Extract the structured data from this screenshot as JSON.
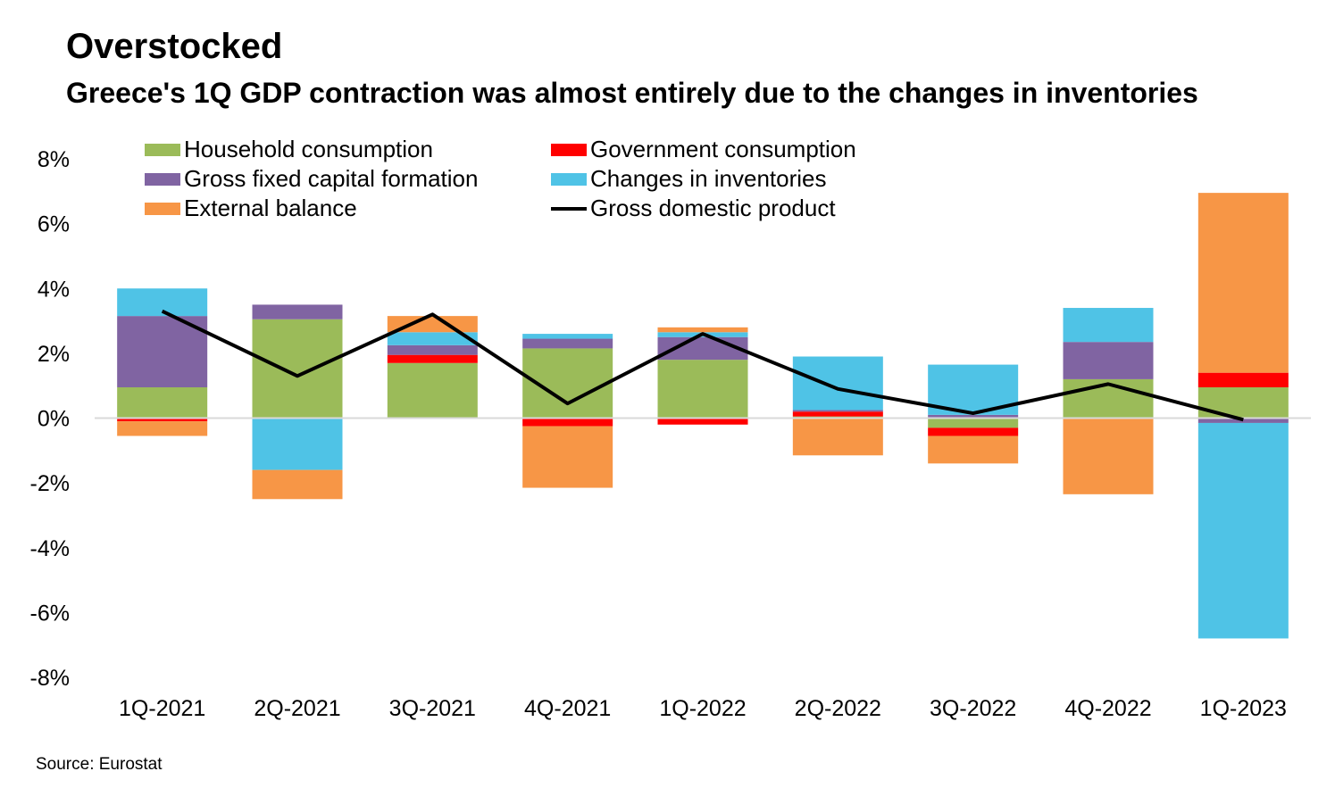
{
  "title": "Overstocked",
  "subtitle": "Greece's 1Q GDP contraction was almost entirely due to the changes in inventories",
  "source": "Source: Eurostat",
  "colors": {
    "household": "#9BBB59",
    "government": "#FF0000",
    "gfcf": "#8064A2",
    "inventories": "#4FC3E6",
    "external": "#F79646",
    "gdp": "#000000"
  },
  "chart_data": {
    "type": "bar",
    "stacked": true,
    "categories": [
      "1Q-2021",
      "2Q-2021",
      "3Q-2021",
      "4Q-2021",
      "1Q-2022",
      "2Q-2022",
      "3Q-2022",
      "4Q-2022",
      "1Q-2023"
    ],
    "ylim": [
      -8,
      8
    ],
    "y_ticks": [
      8,
      6,
      4,
      2,
      0,
      -2,
      -4,
      -6,
      -8
    ],
    "y_tick_labels": [
      "8%",
      "6%",
      "4%",
      "2%",
      "0%",
      "-2%",
      "-4%",
      "-6%",
      "-8%"
    ],
    "legend_position": "top",
    "series": [
      {
        "key": "household",
        "name": "Household consumption",
        "values": [
          0.95,
          3.05,
          1.7,
          2.15,
          1.8,
          0.05,
          -0.3,
          1.2,
          0.95
        ]
      },
      {
        "key": "government",
        "name": "Government consumption",
        "values": [
          -0.1,
          0.0,
          0.25,
          -0.25,
          -0.2,
          0.15,
          -0.25,
          0.0,
          0.45
        ]
      },
      {
        "key": "gfcf",
        "name": "Gross fixed capital formation",
        "values": [
          2.2,
          0.45,
          0.3,
          0.3,
          0.7,
          0.05,
          0.1,
          1.15,
          -0.15
        ]
      },
      {
        "key": "inventories",
        "name": "Changes in inventories",
        "values": [
          0.85,
          -1.6,
          0.4,
          0.15,
          0.15,
          1.65,
          1.55,
          1.05,
          -6.65
        ]
      },
      {
        "key": "external",
        "name": "External balance",
        "values": [
          -0.45,
          -0.9,
          0.5,
          -1.9,
          0.15,
          -1.15,
          -0.85,
          -2.35,
          5.55
        ]
      }
    ],
    "line": {
      "key": "gdp",
      "name": "Gross domestic product",
      "values": [
        3.3,
        1.3,
        3.2,
        0.45,
        2.6,
        0.9,
        0.15,
        1.05,
        -0.05
      ]
    }
  }
}
